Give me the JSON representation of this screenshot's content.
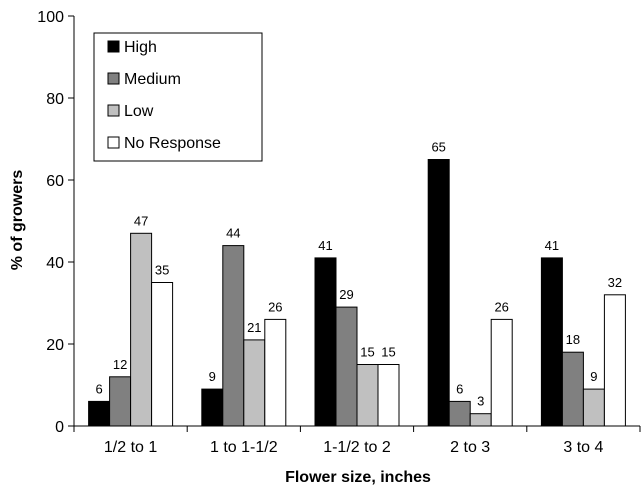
{
  "chart_data": {
    "type": "bar",
    "title": "",
    "xlabel": "Flower size, inches",
    "ylabel": "% of growers",
    "ylim": [
      0,
      100
    ],
    "yticks": [
      0,
      20,
      40,
      60,
      80,
      100
    ],
    "grid": false,
    "legend_position": "top-left",
    "categories": [
      "1/2 to 1",
      "1 to 1-1/2",
      "1-1/2 to 2",
      "2 to 3",
      "3 to 4"
    ],
    "series": [
      {
        "name": "High",
        "color": "#000000",
        "values": [
          6,
          9,
          41,
          65,
          41
        ]
      },
      {
        "name": "Medium",
        "color": "#808080",
        "values": [
          12,
          44,
          29,
          6,
          18
        ]
      },
      {
        "name": "Low",
        "color": "#c0c0c0",
        "values": [
          47,
          21,
          15,
          3,
          9
        ]
      },
      {
        "name": "No Response",
        "color": "#ffffff",
        "values": [
          35,
          26,
          15,
          26,
          32
        ]
      }
    ]
  }
}
